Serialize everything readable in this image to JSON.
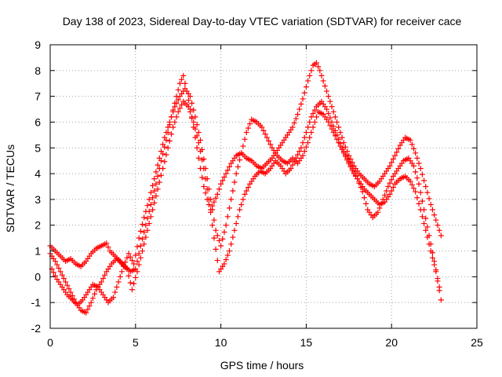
{
  "chart_data": {
    "type": "scatter",
    "title": "Day 138 of 2023, Sidereal Day-to-day VTEC variation (SDTVAR) for receiver cace",
    "xlabel": "GPS time / hours",
    "ylabel": "SDTVAR / TECUs",
    "xlim": [
      0,
      25
    ],
    "ylim": [
      -2,
      9
    ],
    "xticks": [
      0,
      5,
      10,
      15,
      20,
      25
    ],
    "yticks": [
      -2,
      -1,
      0,
      1,
      2,
      3,
      4,
      5,
      6,
      7,
      8,
      9
    ],
    "grid": true,
    "marker": "+",
    "color": "#ff0000",
    "series": [
      {
        "x": [
          0.0,
          0.3,
          0.6,
          0.9,
          1.2,
          1.5,
          1.8,
          2.1,
          2.4,
          2.7,
          3.0,
          3.3,
          3.5,
          3.8,
          4.1,
          4.4,
          4.7,
          5.0,
          5.3,
          5.6,
          5.9,
          6.2,
          6.5,
          6.8,
          7.1,
          7.4,
          7.6,
          7.8,
          8.0,
          8.2,
          8.4,
          8.6,
          8.8,
          9.0,
          9.2,
          9.4,
          9.6,
          9.8,
          10.0,
          10.3,
          10.6,
          10.9,
          11.2,
          11.5,
          11.8,
          12.1,
          12.4,
          12.7,
          13.0,
          13.3,
          13.6,
          13.9,
          14.2,
          14.5,
          14.8,
          15.1,
          15.4,
          15.6,
          15.8,
          16.0,
          16.3,
          16.6,
          16.9,
          17.2,
          17.5,
          17.8,
          18.1,
          18.4,
          18.7,
          19.0,
          19.3,
          19.6,
          19.9,
          20.2,
          20.5,
          20.8,
          21.1,
          21.4,
          21.7,
          22.0,
          22.3,
          22.6,
          22.9
        ],
        "y": [
          1.2,
          1.0,
          0.8,
          0.6,
          0.7,
          0.5,
          0.4,
          0.6,
          0.9,
          1.1,
          1.2,
          1.3,
          1.0,
          0.8,
          0.6,
          0.4,
          0.2,
          0.3,
          1.2,
          2.0,
          2.8,
          3.6,
          4.5,
          5.3,
          6.2,
          7.0,
          7.5,
          7.8,
          7.2,
          6.5,
          5.8,
          5.0,
          4.2,
          3.5,
          3.0,
          2.6,
          2.9,
          3.2,
          3.6,
          4.0,
          4.4,
          4.7,
          4.8,
          4.6,
          4.5,
          4.3,
          4.2,
          4.4,
          4.6,
          4.9,
          5.2,
          5.5,
          5.8,
          6.3,
          6.9,
          7.6,
          8.2,
          8.3,
          8.0,
          7.6,
          7.0,
          6.4,
          5.8,
          5.2,
          4.7,
          4.3,
          4.0,
          3.8,
          3.6,
          3.5,
          3.7,
          4.0,
          4.3,
          4.7,
          5.1,
          5.4,
          5.3,
          4.8,
          4.2,
          3.5,
          2.8,
          2.2,
          1.6
        ]
      },
      {
        "x": [
          0.0,
          0.3,
          0.6,
          0.9,
          1.2,
          1.5,
          1.8,
          2.1,
          2.4,
          2.7,
          3.0,
          3.3,
          3.6,
          3.9,
          4.2,
          4.5,
          4.8,
          5.1,
          5.4,
          5.7,
          6.0,
          6.3,
          6.6,
          6.9,
          7.2,
          7.5,
          7.8,
          8.1,
          8.4,
          8.7,
          9.0,
          9.3,
          9.6,
          9.9,
          10.2,
          10.5,
          10.8,
          11.1,
          11.4,
          11.7,
          12.0,
          12.3,
          12.6,
          12.9,
          13.2,
          13.5,
          13.8,
          14.1,
          14.4,
          14.7,
          15.0,
          15.3,
          15.6,
          15.9,
          16.2,
          16.5,
          16.8,
          17.1,
          17.4,
          17.7,
          18.0,
          18.3,
          18.6,
          18.9,
          19.2,
          19.5,
          19.8,
          20.1,
          20.4,
          20.7,
          21.0,
          21.3,
          21.6,
          21.9,
          22.2,
          22.5,
          22.8
        ],
        "y": [
          0.9,
          0.6,
          0.2,
          -0.2,
          -0.6,
          -1.0,
          -1.3,
          -1.4,
          -1.0,
          -0.5,
          -0.2,
          0.2,
          0.5,
          0.7,
          0.5,
          0.3,
          -0.5,
          0.2,
          1.0,
          1.8,
          2.6,
          3.4,
          4.2,
          5.0,
          5.8,
          6.4,
          6.8,
          6.6,
          6.0,
          5.2,
          4.2,
          3.0,
          1.5,
          0.2,
          0.5,
          1.0,
          1.8,
          2.6,
          3.2,
          3.6,
          3.9,
          4.1,
          4.0,
          4.2,
          4.5,
          4.3,
          4.0,
          4.2,
          4.6,
          5.0,
          5.6,
          6.2,
          6.6,
          6.8,
          6.5,
          6.0,
          5.5,
          5.0,
          4.6,
          4.2,
          3.8,
          3.3,
          2.6,
          2.3,
          2.5,
          3.0,
          3.5,
          3.9,
          4.2,
          4.5,
          4.6,
          4.3,
          3.6,
          2.6,
          1.6,
          0.6,
          -0.4
        ]
      },
      {
        "x": [
          0.1,
          0.4,
          0.7,
          1.0,
          1.3,
          1.6,
          1.9,
          2.2,
          2.5,
          2.8,
          3.1,
          3.4,
          3.7,
          4.0,
          4.3,
          4.6,
          4.9,
          5.2,
          5.5,
          5.8,
          6.1,
          6.4,
          6.7,
          7.0,
          7.3,
          7.6,
          7.9,
          8.2,
          8.5,
          8.8,
          9.1,
          9.4,
          9.7,
          10.0,
          10.3,
          10.6,
          10.9,
          11.2,
          11.5,
          11.8,
          12.1,
          12.4,
          12.7,
          13.0,
          13.3,
          13.6,
          13.9,
          14.2,
          14.5,
          14.8,
          15.1,
          15.4,
          15.7,
          16.0,
          16.3,
          16.6,
          16.9,
          17.2,
          17.5,
          17.8,
          18.1,
          18.4,
          18.7,
          19.0,
          19.3,
          19.6,
          19.9,
          20.2,
          20.5,
          20.8,
          21.1,
          21.4,
          21.7,
          22.0,
          22.3,
          22.6,
          22.9
        ],
        "y": [
          0.3,
          -0.1,
          -0.4,
          -0.7,
          -0.9,
          -1.1,
          -0.9,
          -0.6,
          -0.3,
          -0.4,
          -0.7,
          -1.0,
          -0.8,
          -0.2,
          0.4,
          0.9,
          0.5,
          1.5,
          2.3,
          3.0,
          3.8,
          4.6,
          5.4,
          6.0,
          6.6,
          7.0,
          7.3,
          7.0,
          6.2,
          5.3,
          4.2,
          3.0,
          1.8,
          1.2,
          2.0,
          3.0,
          4.0,
          4.8,
          5.6,
          6.1,
          6.0,
          5.8,
          5.4,
          5.0,
          4.7,
          4.5,
          4.4,
          4.6,
          4.4,
          4.7,
          5.2,
          5.8,
          6.4,
          6.3,
          6.0,
          5.6,
          5.2,
          4.8,
          4.4,
          4.0,
          3.7,
          3.4,
          3.2,
          3.0,
          2.8,
          2.9,
          3.2,
          3.6,
          3.8,
          3.9,
          3.7,
          3.3,
          2.6,
          1.8,
          1.0,
          0.2,
          -0.9
        ]
      }
    ]
  }
}
